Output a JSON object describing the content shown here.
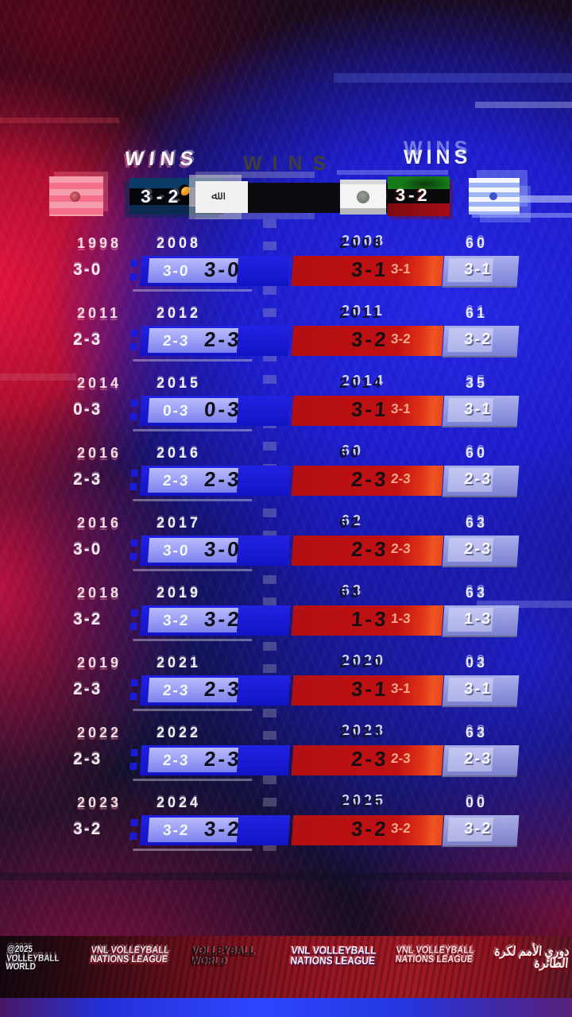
{
  "header": {
    "wins": "WINS"
  },
  "matchup": {
    "left_score": "3-2",
    "right_score": "3-2",
    "calligraphy": "ﷲ"
  },
  "rows": [
    {
      "year_ghost": "1998",
      "year_left": "2008",
      "year_right": "2008",
      "year_right_ghost": "60",
      "score_ghost": "3-0",
      "score_left": "3-0",
      "score_left_ghost": "3-0",
      "score_mid": "3-1",
      "score_mid_ghost": "3-1",
      "score_right": "3-1"
    },
    {
      "year_ghost": "2011",
      "year_left": "2012",
      "year_right": "2011",
      "year_right_ghost": "61",
      "score_ghost": "2-3",
      "score_left": "2-3",
      "score_left_ghost": "2-3",
      "score_mid": "3-2",
      "score_mid_ghost": "3-2",
      "score_right": "3-2"
    },
    {
      "year_ghost": "2014",
      "year_left": "2015",
      "year_right": "2014",
      "year_right_ghost": "35",
      "score_ghost": "0-3",
      "score_left": "0-3",
      "score_left_ghost": "0-3",
      "score_mid": "3-1",
      "score_mid_ghost": "3-1",
      "score_right": "3-1"
    },
    {
      "year_ghost": "2016",
      "year_left": "2016",
      "year_right": "60",
      "year_right_ghost": "60",
      "score_ghost": "2-3",
      "score_left": "2-3",
      "score_left_ghost": "2-3",
      "score_mid": "2-3",
      "score_mid_ghost": "2-3",
      "score_right": "2-3"
    },
    {
      "year_ghost": "2016",
      "year_left": "2017",
      "year_right": "62",
      "year_right_ghost": "63",
      "score_ghost": "3-0",
      "score_left": "3-0",
      "score_left_ghost": "3-0",
      "score_mid": "2-3",
      "score_mid_ghost": "2-3",
      "score_right": "2-3"
    },
    {
      "year_ghost": "2018",
      "year_left": "2019",
      "year_right": "63",
      "year_right_ghost": "63",
      "score_ghost": "3-2",
      "score_left": "3-2",
      "score_left_ghost": "3-2",
      "score_mid": "1-3",
      "score_mid_ghost": "1-3",
      "score_right": "1-3"
    },
    {
      "year_ghost": "2019",
      "year_left": "2021",
      "year_right": "2020",
      "year_right_ghost": "03",
      "score_ghost": "2-3",
      "score_left": "2-3",
      "score_left_ghost": "2-3",
      "score_mid": "3-1",
      "score_mid_ghost": "3-1",
      "score_right": "3-1"
    },
    {
      "year_ghost": "2022",
      "year_left": "2022",
      "year_right": "2023",
      "year_right_ghost": "63",
      "score_ghost": "2-3",
      "score_left": "2-3",
      "score_left_ghost": "2-3",
      "score_mid": "2-3",
      "score_mid_ghost": "2-3",
      "score_right": "2-3"
    },
    {
      "year_ghost": "2023",
      "year_left": "2024",
      "year_right": "2025",
      "year_right_ghost": "00",
      "score_ghost": "3-2",
      "score_left": "3-2",
      "score_left_ghost": "3-2",
      "score_mid": "3-2",
      "score_mid_ghost": "3-2",
      "score_right": "3-2"
    }
  ],
  "footer": {
    "copyright": "@2025 VOLLEYBALL WORLD",
    "vnl_a": "VNL VOLLEYBALL NATIONS LEAGUE",
    "vw": "VOLLEYBALL WORLD",
    "vnl_b": "VNL VOLLEYBALL NATIONS LEAGUE",
    "vnl_c": "VNL VOLLEYBALL NATIONS LEAGUE",
    "arabic": "دوري الأمم لكرة الطائرة"
  },
  "colors": {
    "pill_blue": "#1a1ad8",
    "pill_blue_overlay": "#c2c6ff",
    "pill_red": "#c11113",
    "pill_red_edge": "#f05522",
    "pill_right": "#9ba0d9",
    "background_blue": "#2222e0",
    "background_red": "#c01030",
    "score_dark_text": "#12121a"
  },
  "chart_data": {
    "type": "table",
    "title": "WINS",
    "columns": [
      "year",
      "score_left_column",
      "score_right_column"
    ],
    "rows": [
      [
        "2008",
        "3-0",
        "3-1"
      ],
      [
        "2011",
        "2-3",
        "3-2"
      ],
      [
        "2014",
        "0-3",
        "3-1"
      ],
      [
        "2016",
        "2-3",
        "2-3"
      ],
      [
        "2017",
        "3-0",
        "2-3"
      ],
      [
        "2018",
        "3-2",
        "1-3"
      ],
      [
        "2019",
        "2-3",
        "3-1"
      ],
      [
        "2022",
        "2-3",
        "2-3"
      ],
      [
        "2024",
        "3-2",
        "3-2"
      ]
    ]
  }
}
